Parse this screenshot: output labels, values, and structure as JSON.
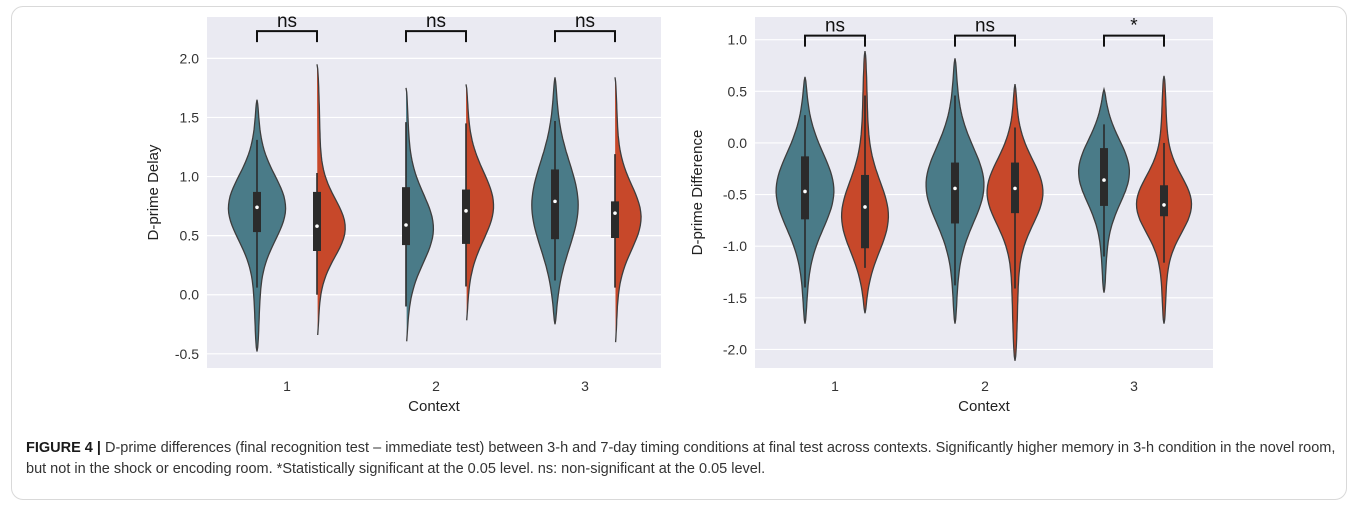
{
  "colors": {
    "teal": "#4a7b88",
    "red": "#c7482a",
    "panel_bg": "#eaeaf2",
    "grid": "#ffffff"
  },
  "chart_data": [
    {
      "type": "violin",
      "xlabel": "Context",
      "ylabel": "D-prime Delay",
      "ylim": [
        -0.62,
        2.35
      ],
      "yticks": [
        "-0.5",
        "0.0",
        "0.5",
        "1.0",
        "1.5",
        "2.0"
      ],
      "categories": [
        "1",
        "2",
        "3"
      ],
      "grid": true,
      "series": [
        {
          "color": "teal",
          "violins": [
            {
              "min": -0.48,
              "max": 1.65,
              "q1": 0.53,
              "median": 0.74,
              "q3": 0.87,
              "w_lo": 0.06,
              "w_hi": 1.31,
              "mode": 0.75,
              "spread": 0.28,
              "width": 1.0
            },
            {
              "min": -0.43,
              "max": 1.75,
              "q1": 0.42,
              "median": 0.59,
              "q3": 0.91,
              "w_lo": -0.1,
              "w_hi": 1.46,
              "mode": 0.55,
              "spread": 0.3,
              "width": 0.95
            },
            {
              "min": -0.25,
              "max": 1.84,
              "q1": 0.47,
              "median": 0.79,
              "q3": 1.06,
              "w_lo": 0.12,
              "w_hi": 1.47,
              "mode": 0.75,
              "spread": 0.38,
              "width": 0.8
            }
          ]
        },
        {
          "color": "red",
          "violins": [
            {
              "min": -0.38,
              "max": 1.95,
              "q1": 0.37,
              "median": 0.58,
              "q3": 0.87,
              "w_lo": 0.0,
              "w_hi": 1.03,
              "mode": 0.55,
              "spread": 0.25,
              "width": 1.0
            },
            {
              "min": -0.25,
              "max": 1.78,
              "q1": 0.43,
              "median": 0.71,
              "q3": 0.89,
              "w_lo": 0.07,
              "w_hi": 1.45,
              "mode": 0.75,
              "spread": 0.3,
              "width": 0.95
            },
            {
              "min": -0.44,
              "max": 1.84,
              "q1": 0.48,
              "median": 0.69,
              "q3": 0.79,
              "w_lo": 0.06,
              "w_hi": 1.19,
              "mode": 0.65,
              "spread": 0.28,
              "width": 0.9
            }
          ]
        }
      ],
      "annotations": [
        "ns",
        "ns",
        "ns"
      ],
      "annotation_level": 2.23
    },
    {
      "type": "violin",
      "xlabel": "Context",
      "ylabel": "D-prime Difference",
      "ylim": [
        -2.18,
        1.22
      ],
      "yticks": [
        "-2.0",
        "-1.5",
        "-1.0",
        "-0.5",
        "0.0",
        "0.5",
        "1.0"
      ],
      "categories": [
        "1",
        "2",
        "3"
      ],
      "grid": true,
      "series": [
        {
          "color": "teal",
          "violins": [
            {
              "min": -1.75,
              "max": 0.64,
              "q1": -0.74,
              "median": -0.47,
              "q3": -0.13,
              "w_lo": -1.4,
              "w_hi": 0.27,
              "mode": -0.45,
              "spread": 0.38,
              "width": 1.0
            },
            {
              "min": -1.75,
              "max": 0.82,
              "q1": -0.78,
              "median": -0.44,
              "q3": -0.19,
              "w_lo": -1.38,
              "w_hi": 0.46,
              "mode": -0.4,
              "spread": 0.38,
              "width": 1.0
            },
            {
              "min": -1.45,
              "max": 0.52,
              "q1": -0.61,
              "median": -0.36,
              "q3": -0.05,
              "w_lo": -1.1,
              "w_hi": 0.18,
              "mode": -0.25,
              "spread": 0.32,
              "width": 0.9
            }
          ]
        },
        {
          "color": "red",
          "violins": [
            {
              "min": -1.65,
              "max": 0.89,
              "q1": -1.02,
              "median": -0.62,
              "q3": -0.31,
              "w_lo": -1.21,
              "w_hi": 0.46,
              "mode": -0.75,
              "spread": 0.35,
              "width": 0.85
            },
            {
              "min": -2.11,
              "max": 0.57,
              "q1": -0.68,
              "median": -0.44,
              "q3": -0.19,
              "w_lo": -1.41,
              "w_hi": 0.15,
              "mode": -0.45,
              "spread": 0.32,
              "width": 1.0
            },
            {
              "min": -1.75,
              "max": 0.65,
              "q1": -0.71,
              "median": -0.6,
              "q3": -0.41,
              "w_lo": -1.16,
              "w_hi": 0.0,
              "mode": -0.6,
              "spread": 0.28,
              "width": 0.95
            }
          ]
        }
      ],
      "annotations": [
        "ns",
        "ns",
        "*"
      ],
      "annotation_level": 1.04
    }
  ],
  "caption": {
    "label": "FIGURE 4 |",
    "text": " D-prime differences (final recognition test – immediate test) between 3-h and 7-day timing conditions at final test across contexts. Significantly higher memory in 3-h condition in the novel room, but not in the shock or encoding room. *Statistically significant at the 0.05 level. ns: non-significant at the 0.05 level."
  }
}
